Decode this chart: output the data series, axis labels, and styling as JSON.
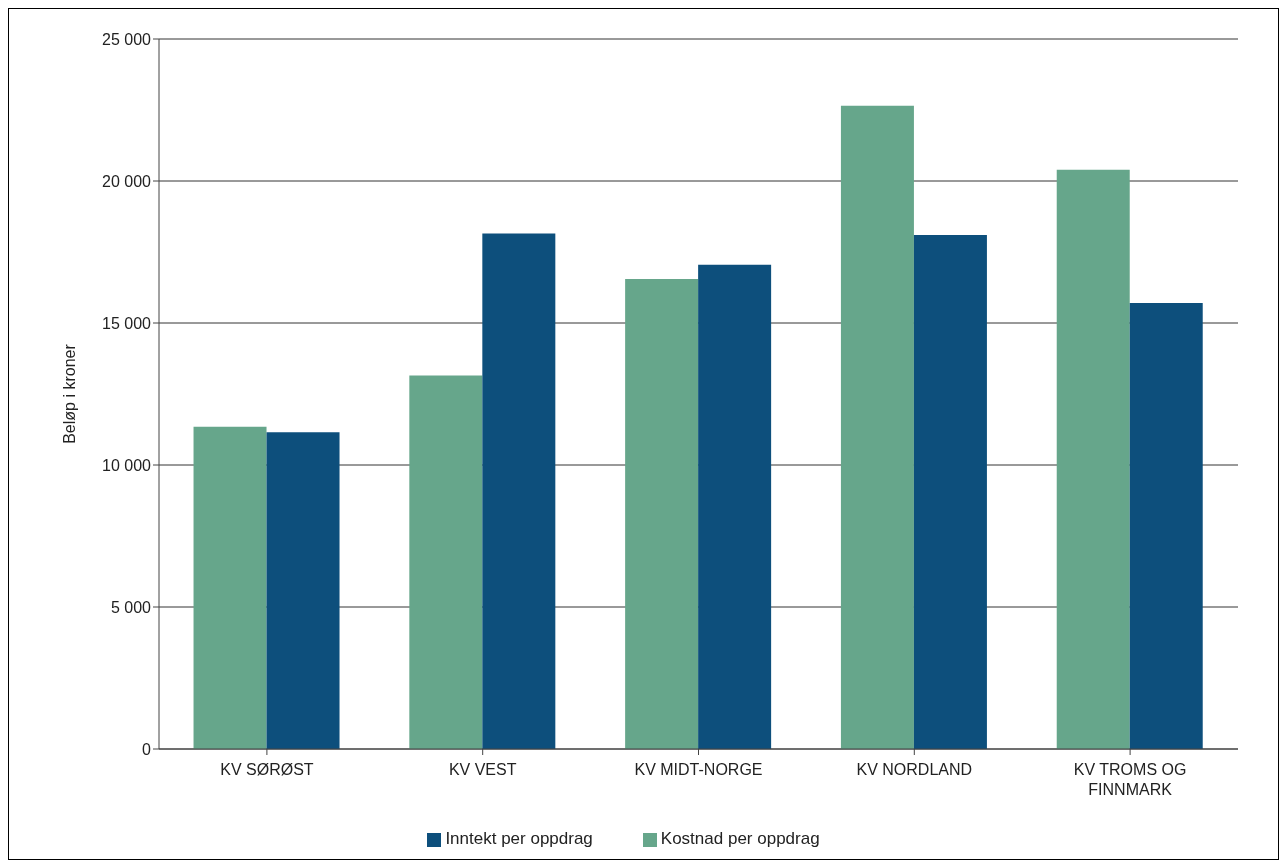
{
  "chart_data": {
    "type": "bar",
    "ylabel": "Beløp i kroner",
    "categories": [
      "KV SØRØST",
      "KV VEST",
      "KV MIDT-NORGE",
      "KV NORDLAND",
      "KV TROMS OG FINNMARK"
    ],
    "series": [
      {
        "name": "Kostnad per oppdrag",
        "color": "#66a68b",
        "values": [
          11350,
          13150,
          16550,
          22650,
          20400
        ]
      },
      {
        "name": "Inntekt per oppdrag",
        "color": "#0d4f7c",
        "values": [
          11150,
          18150,
          17050,
          18100,
          15700
        ]
      }
    ],
    "ylim": [
      0,
      25000
    ],
    "yticks": [
      {
        "value": 0,
        "label": "0"
      },
      {
        "value": 5000,
        "label": "5 000"
      },
      {
        "value": 10000,
        "label": "10 000"
      },
      {
        "value": 15000,
        "label": "15 000"
      },
      {
        "value": 20000,
        "label": "20 000"
      },
      {
        "value": 25000,
        "label": "25 000"
      }
    ],
    "grid": "y",
    "legend": "bottom"
  }
}
